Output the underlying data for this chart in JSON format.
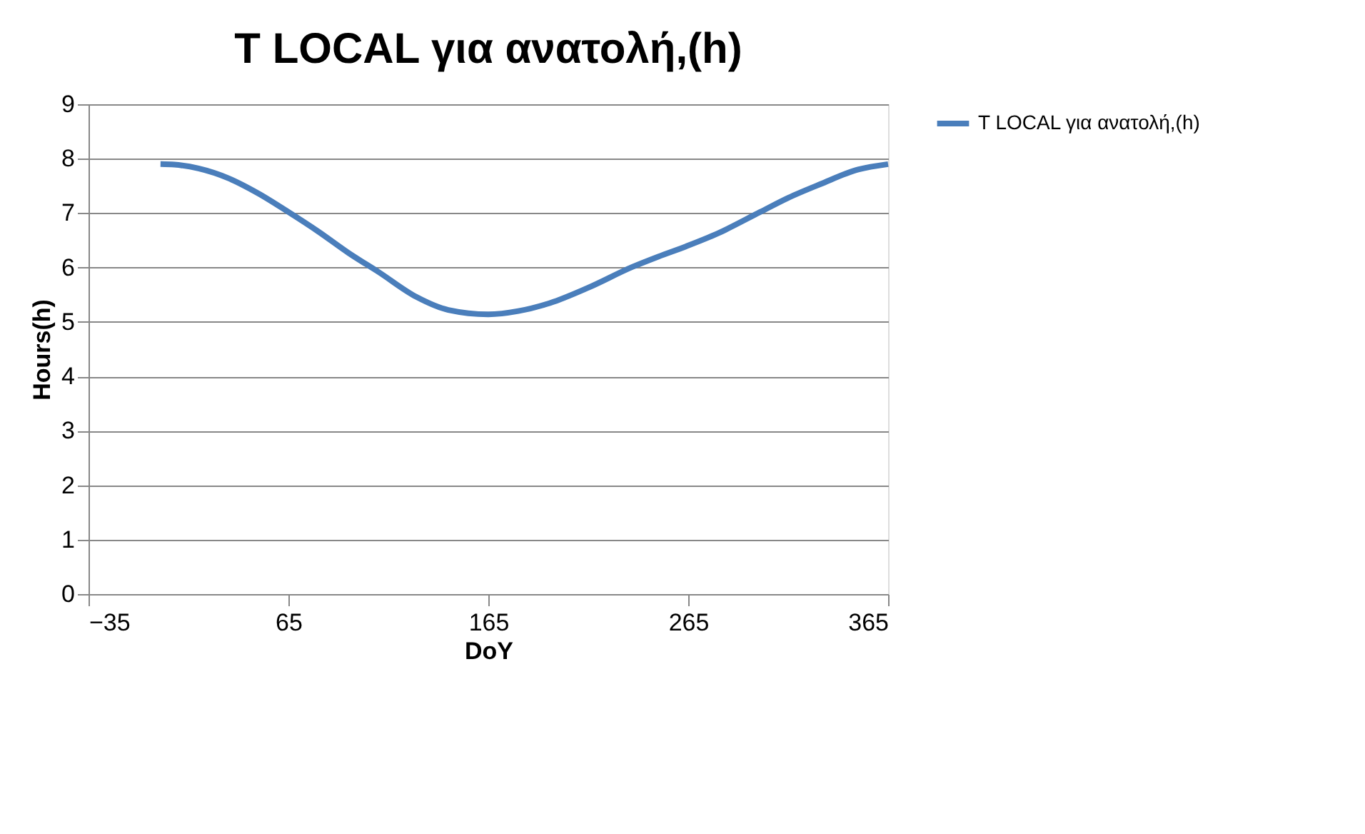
{
  "chart_data": {
    "type": "line",
    "title": "T LOCAL για ανατολή,(h)",
    "xlabel": "DoY",
    "ylabel": "Hours(h)",
    "x": [
      1,
      8,
      20,
      35,
      50,
      65,
      80,
      95,
      110,
      129,
      145,
      165,
      180,
      196,
      215,
      237,
      250,
      264,
      280,
      301,
      315,
      331,
      350,
      365
    ],
    "series": [
      {
        "name": "T LOCAL για ανατολή,(h)",
        "color": "#4a7ebb",
        "values": [
          7.9,
          7.89,
          7.82,
          7.64,
          7.36,
          7.02,
          6.66,
          6.27,
          5.92,
          5.46,
          5.22,
          5.14,
          5.2,
          5.35,
          5.63,
          6.01,
          6.2,
          6.39,
          6.63,
          7.02,
          7.28,
          7.53,
          7.8,
          7.9
        ]
      }
    ],
    "xlim": [
      -35,
      365
    ],
    "xticks": [
      -35,
      65,
      165,
      265,
      365
    ],
    "ylim": [
      0,
      9
    ],
    "yticks": [
      0,
      1,
      2,
      3,
      4,
      5,
      6,
      7,
      8,
      9
    ],
    "grid": "y",
    "legend": "right",
    "marker": "none",
    "line_style": "solid"
  }
}
